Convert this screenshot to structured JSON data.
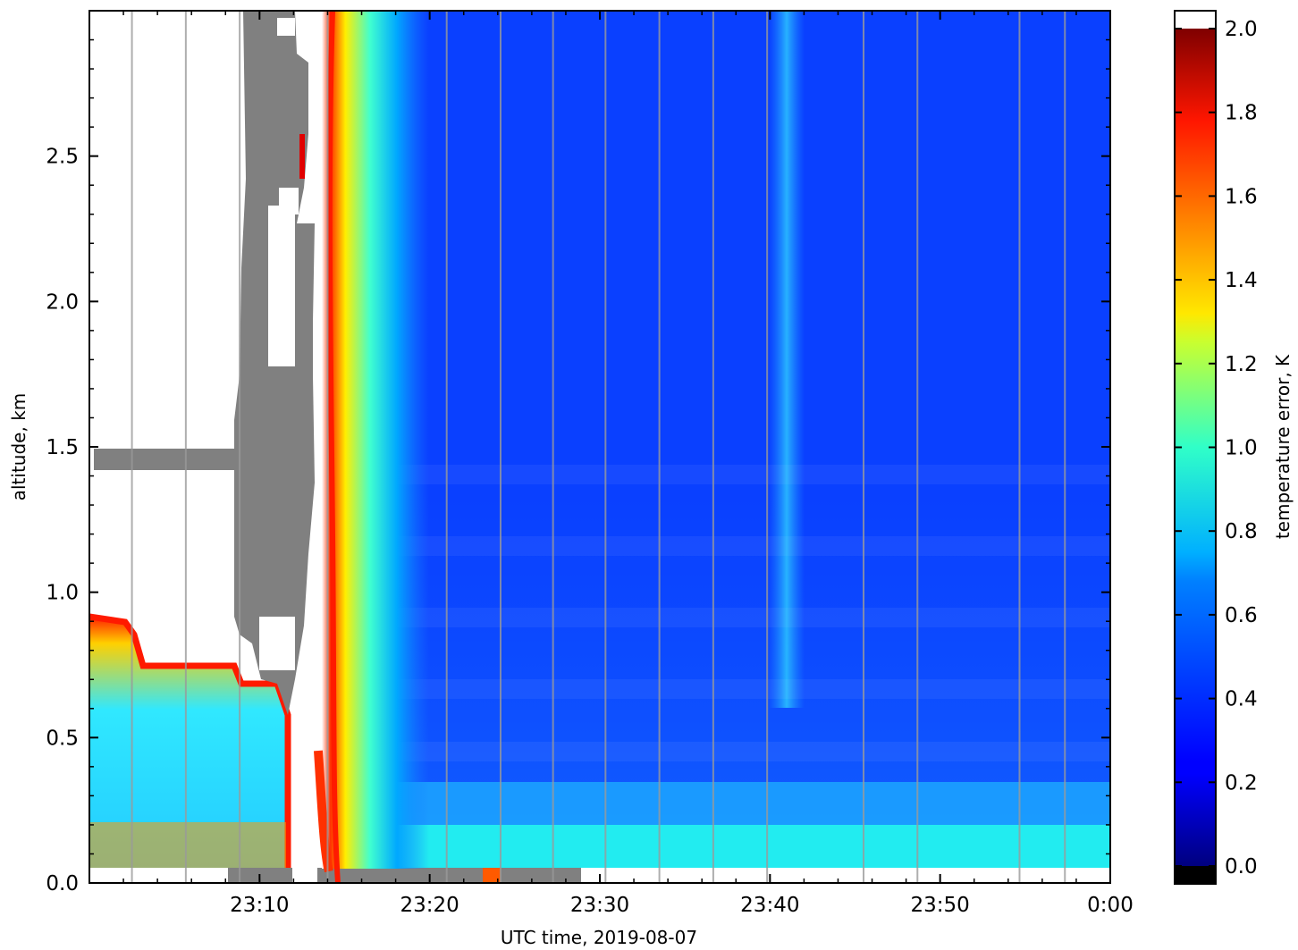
{
  "chart_data": {
    "type": "heatmap",
    "title": "",
    "xlabel": "UTC time,  2019-08-07",
    "ylabel": "altitude, km",
    "x_unit": "UTC time",
    "x_range": [
      "23:00:00",
      "24:00:00"
    ],
    "ylim": [
      0.0,
      3.0
    ],
    "x_ticks": [
      {
        "t": "23:10",
        "label": "23:10"
      },
      {
        "t": "23:20",
        "label": "23:20"
      },
      {
        "t": "23:30",
        "label": "23:30"
      },
      {
        "t": "23:40",
        "label": "23:40"
      },
      {
        "t": "23:50",
        "label": "23:50"
      },
      {
        "t": "24:00",
        "label": "0:00"
      }
    ],
    "y_ticks": [
      {
        "v": 0.0,
        "label": "0.0"
      },
      {
        "v": 0.5,
        "label": "0.5"
      },
      {
        "v": 1.0,
        "label": "1.0"
      },
      {
        "v": 1.5,
        "label": "1.5"
      },
      {
        "v": 2.0,
        "label": "2.0"
      },
      {
        "v": 2.5,
        "label": "2.5"
      }
    ],
    "colorbar": {
      "label": "temperature error, K",
      "range": [
        0.0,
        2.0
      ],
      "colormap": "jet",
      "under_color": "#000000",
      "over_color": "#ffffff",
      "ticks": [
        {
          "v": 0.0,
          "label": "0.0"
        },
        {
          "v": 0.2,
          "label": "0.2"
        },
        {
          "v": 0.4,
          "label": "0.4"
        },
        {
          "v": 0.6,
          "label": "0.6"
        },
        {
          "v": 0.8,
          "label": "0.8"
        },
        {
          "v": 1.0,
          "label": "1.0"
        },
        {
          "v": 1.2,
          "label": "1.2"
        },
        {
          "v": 1.4,
          "label": "1.4"
        },
        {
          "v": 1.6,
          "label": "1.6"
        },
        {
          "v": 1.8,
          "label": "1.8"
        },
        {
          "v": 2.0,
          "label": "2.0"
        }
      ]
    },
    "masked_color": "#808080",
    "scan_boundaries_utc": [
      "23:02:30",
      "23:05:40",
      "23:08:50",
      "23:14:00",
      "23:21:00",
      "23:24:10",
      "23:27:15",
      "23:30:20",
      "23:33:30",
      "23:36:40",
      "23:39:50",
      "23:45:30",
      "23:48:40",
      "23:54:40",
      "23:57:20"
    ],
    "features": [
      {
        "desc": "high error / no data (white)",
        "start": "23:00",
        "end": "23:14"
      },
      {
        "desc": "masked region (gray)",
        "start": "23:09",
        "end": "23:13",
        "alt_min": 0.2,
        "alt_max": 3.0
      },
      {
        "desc": "masked layer (gray)",
        "start": "23:00",
        "end": "23:09",
        "alt_min": 1.42,
        "alt_max": 1.5
      },
      {
        "desc": "error transition front",
        "utc": "23:14:30"
      },
      {
        "desc": "low error interior",
        "start": "23:16",
        "end": "24:00",
        "value_K": 0.25
      },
      {
        "desc": "near-surface layer",
        "alt_min": 0.05,
        "alt_max": 0.2,
        "value_K": 0.65
      },
      {
        "desc": "elevated error column",
        "start": "23:40",
        "end": "23:42",
        "value_K": 0.55
      }
    ]
  }
}
